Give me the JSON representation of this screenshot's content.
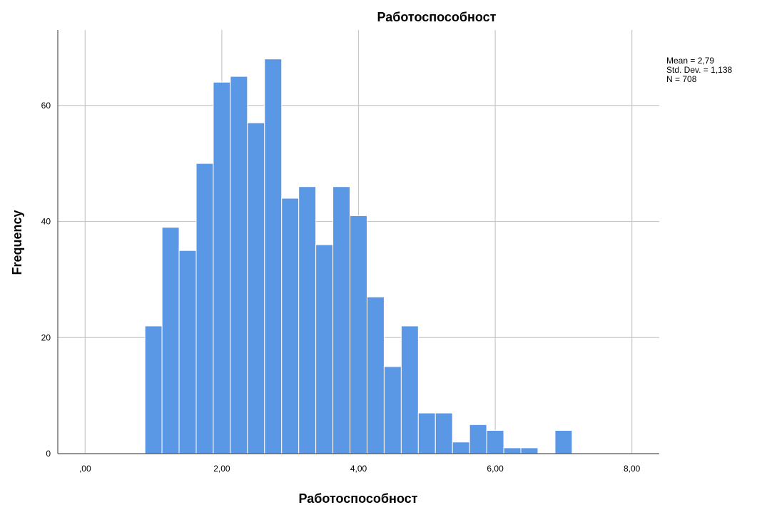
{
  "chart_data": {
    "type": "bar",
    "title": "Работоспособност",
    "xlabel": "Работоспособност",
    "ylabel": "Frequency",
    "xlim": [
      -0.4,
      8.4
    ],
    "ylim": [
      0,
      73
    ],
    "grid": true,
    "bin_width": 0.25,
    "bins": [
      {
        "start": 0.875,
        "count": 22
      },
      {
        "start": 1.125,
        "count": 39
      },
      {
        "start": 1.375,
        "count": 35
      },
      {
        "start": 1.625,
        "count": 50
      },
      {
        "start": 1.875,
        "count": 64
      },
      {
        "start": 2.125,
        "count": 65
      },
      {
        "start": 2.375,
        "count": 57
      },
      {
        "start": 2.625,
        "count": 68
      },
      {
        "start": 2.875,
        "count": 44
      },
      {
        "start": 3.125,
        "count": 46
      },
      {
        "start": 3.375,
        "count": 36
      },
      {
        "start": 3.625,
        "count": 46
      },
      {
        "start": 3.875,
        "count": 41
      },
      {
        "start": 4.125,
        "count": 27
      },
      {
        "start": 4.375,
        "count": 15
      },
      {
        "start": 4.625,
        "count": 22
      },
      {
        "start": 4.875,
        "count": 7
      },
      {
        "start": 5.125,
        "count": 7
      },
      {
        "start": 5.375,
        "count": 2
      },
      {
        "start": 5.625,
        "count": 5
      },
      {
        "start": 5.875,
        "count": 4
      },
      {
        "start": 6.125,
        "count": 1
      },
      {
        "start": 6.375,
        "count": 1
      },
      {
        "start": 6.875,
        "count": 4
      }
    ],
    "x_ticks": [
      {
        "value": 0,
        "label": ",00"
      },
      {
        "value": 2,
        "label": "2,00"
      },
      {
        "value": 4,
        "label": "4,00"
      },
      {
        "value": 6,
        "label": "6,00"
      },
      {
        "value": 8,
        "label": "8,00"
      }
    ],
    "y_ticks": [
      {
        "value": 0,
        "label": "0"
      },
      {
        "value": 20,
        "label": "20"
      },
      {
        "value": 40,
        "label": "40"
      },
      {
        "value": 60,
        "label": "60"
      }
    ],
    "stats": {
      "mean": "Mean = 2,79",
      "std": "Std. Dev. = 1,138",
      "n": "N = 708"
    },
    "colors": {
      "bar_fill": "#5a97e4",
      "bar_stroke": "#ffffff",
      "grid": "#c8c8c8",
      "axis": "#555555"
    }
  }
}
